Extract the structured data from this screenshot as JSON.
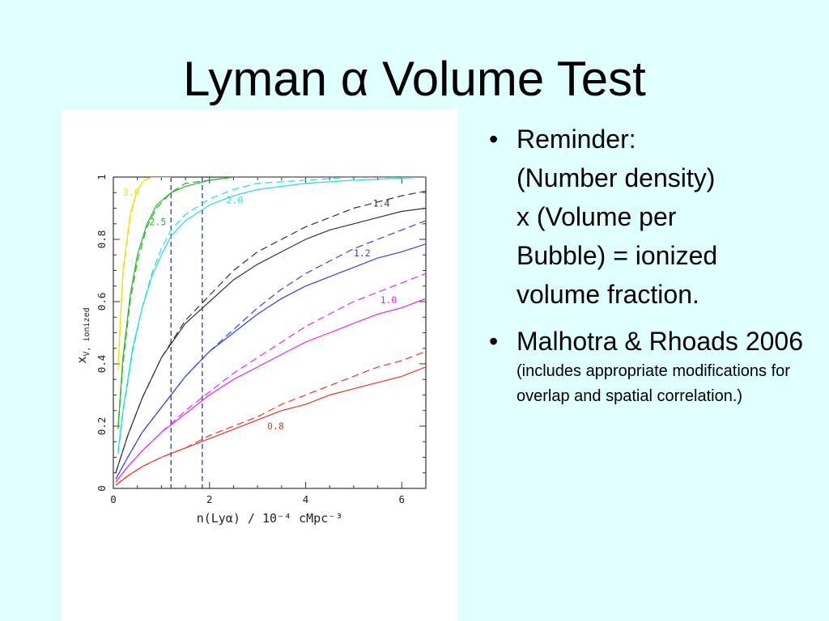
{
  "slide": {
    "title": "Lyman α Volume Test",
    "bullets": [
      {
        "text": "Reminder: (Number density)  x (Volume per Bubble) = ionized volume fraction.",
        "sub": ""
      },
      {
        "text": "Malhotra & Rhoads 2006",
        "sub": "(includes appropriate modifications for overlap and spatial correlation.)"
      }
    ]
  },
  "chart_data": {
    "type": "line",
    "xlabel": "n(Lyα) / 10⁻⁴ cMpc⁻³",
    "ylabel_main": "x",
    "ylabel_sub": "V, ionized",
    "xlim": [
      0,
      6.5
    ],
    "ylim": [
      0,
      1
    ],
    "xticks": [
      0,
      2,
      4,
      6
    ],
    "yticks": [
      0,
      0.2,
      0.4,
      0.6,
      0.8,
      1
    ],
    "ytick_labels": [
      "0",
      "0.2",
      "0.4",
      "0.6",
      "0.8",
      "1"
    ],
    "vlines": [
      1.2,
      1.85
    ],
    "vline_color": "#3344dd",
    "series": [
      {
        "name": "3.0",
        "color": "#e6e600",
        "x": [
          0.1,
          0.2,
          0.35,
          0.5,
          0.65,
          0.8,
          1.0,
          1.2
        ],
        "solid": [
          0.4,
          0.7,
          0.88,
          0.96,
          0.99,
          1.0,
          1.0,
          1.0
        ],
        "dashed": [
          0.38,
          0.68,
          0.87,
          0.96,
          0.99,
          1.0,
          1.0,
          1.0
        ],
        "label_pos": [
          0.2,
          0.94
        ]
      },
      {
        "name": "2.5",
        "color": "#22bb22",
        "x": [
          0.1,
          0.2,
          0.35,
          0.5,
          0.7,
          0.9,
          1.2,
          1.5,
          2.0,
          2.5,
          3.0,
          6.5
        ],
        "solid": [
          0.2,
          0.42,
          0.62,
          0.75,
          0.85,
          0.91,
          0.95,
          0.97,
          0.99,
          1.0,
          1.0,
          1.0
        ],
        "dashed": [
          0.19,
          0.4,
          0.6,
          0.73,
          0.84,
          0.9,
          0.95,
          0.98,
          0.99,
          1.0,
          1.0,
          1.0
        ],
        "label_pos": [
          0.75,
          0.845
        ]
      },
      {
        "name": "2.0",
        "color": "#22dddd",
        "x": [
          0.1,
          0.2,
          0.4,
          0.6,
          0.8,
          1.0,
          1.2,
          1.5,
          2.0,
          2.5,
          3.0,
          4.0,
          5.0,
          6.5
        ],
        "solid": [
          0.12,
          0.25,
          0.45,
          0.58,
          0.68,
          0.75,
          0.81,
          0.86,
          0.91,
          0.94,
          0.96,
          0.98,
          0.99,
          1.0
        ],
        "dashed": [
          0.11,
          0.24,
          0.44,
          0.58,
          0.69,
          0.77,
          0.83,
          0.88,
          0.93,
          0.96,
          0.98,
          0.99,
          1.0,
          1.0
        ],
        "label_pos": [
          2.35,
          0.915
        ]
      },
      {
        "name": "1.4",
        "color": "#333333",
        "x": [
          0.05,
          0.3,
          0.6,
          1.0,
          1.5,
          2.0,
          2.5,
          3.0,
          3.5,
          4.0,
          4.5,
          5.0,
          5.5,
          6.0,
          6.5
        ],
        "solid": [
          0.05,
          0.17,
          0.29,
          0.42,
          0.53,
          0.6,
          0.67,
          0.72,
          0.76,
          0.8,
          0.83,
          0.85,
          0.87,
          0.89,
          0.9
        ],
        "dashed": [
          0.05,
          0.17,
          0.29,
          0.42,
          0.54,
          0.62,
          0.7,
          0.76,
          0.8,
          0.84,
          0.87,
          0.9,
          0.92,
          0.94,
          0.955
        ],
        "label_pos": [
          5.4,
          0.905
        ]
      },
      {
        "name": "1.2",
        "color": "#3344dd",
        "x": [
          0.05,
          0.3,
          0.6,
          1.0,
          1.5,
          2.0,
          2.5,
          3.0,
          3.5,
          4.0,
          4.5,
          5.0,
          5.5,
          6.0,
          6.5
        ],
        "solid": [
          0.03,
          0.1,
          0.18,
          0.26,
          0.36,
          0.44,
          0.5,
          0.56,
          0.61,
          0.65,
          0.68,
          0.71,
          0.74,
          0.76,
          0.785
        ],
        "dashed": [
          0.03,
          0.1,
          0.18,
          0.26,
          0.36,
          0.44,
          0.51,
          0.58,
          0.64,
          0.69,
          0.73,
          0.77,
          0.8,
          0.83,
          0.86
        ],
        "label_pos": [
          5.0,
          0.745
        ]
      },
      {
        "name": "1.0",
        "color": "#ee22ee",
        "x": [
          0.05,
          0.3,
          0.6,
          1.0,
          1.5,
          2.0,
          2.5,
          3.0,
          3.5,
          4.0,
          4.5,
          5.0,
          5.5,
          6.0,
          6.5
        ],
        "solid": [
          0.02,
          0.07,
          0.12,
          0.18,
          0.24,
          0.3,
          0.35,
          0.39,
          0.43,
          0.47,
          0.5,
          0.53,
          0.56,
          0.58,
          0.61
        ],
        "dashed": [
          0.02,
          0.07,
          0.12,
          0.18,
          0.25,
          0.31,
          0.37,
          0.42,
          0.47,
          0.52,
          0.56,
          0.6,
          0.63,
          0.66,
          0.69
        ],
        "label_pos": [
          5.55,
          0.595
        ]
      },
      {
        "name": "0.8",
        "color": "#ee3322",
        "x": [
          0.05,
          0.3,
          0.6,
          1.0,
          1.5,
          2.0,
          2.5,
          3.0,
          3.5,
          4.0,
          4.5,
          5.0,
          5.5,
          6.0,
          6.5
        ],
        "solid": [
          0.01,
          0.04,
          0.07,
          0.1,
          0.13,
          0.16,
          0.19,
          0.22,
          0.25,
          0.27,
          0.3,
          0.32,
          0.34,
          0.36,
          0.39
        ],
        "dashed": [
          0.01,
          0.04,
          0.07,
          0.1,
          0.13,
          0.17,
          0.2,
          0.23,
          0.27,
          0.3,
          0.33,
          0.36,
          0.39,
          0.41,
          0.44
        ],
        "label_pos": [
          3.2,
          0.19
        ]
      }
    ]
  }
}
